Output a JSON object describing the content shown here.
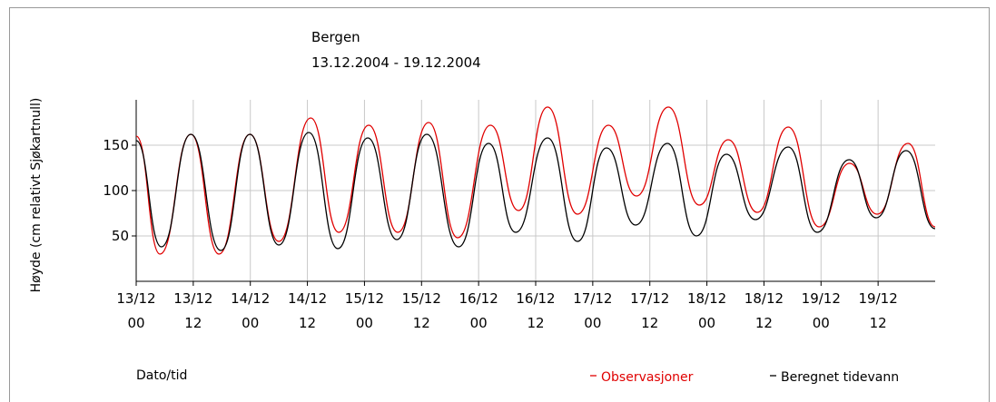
{
  "chart_data": {
    "type": "line",
    "title": "Bergen",
    "subtitle": "13.12.2004 - 19.12.2004",
    "ylabel": "Høyde (cm relativt Sjøkartnull)",
    "xlabel": "Dato/tid",
    "xlim": [
      0,
      168
    ],
    "xticks": [
      {
        "value": 0,
        "label": "13/12"
      },
      {
        "value": 12,
        "label": "13/12"
      },
      {
        "value": 24,
        "label": "14/12"
      },
      {
        "value": 36,
        "label": "14/12"
      },
      {
        "value": 48,
        "label": "15/12"
      },
      {
        "value": 60,
        "label": "15/12"
      },
      {
        "value": 72,
        "label": "16/12"
      },
      {
        "value": 84,
        "label": "16/12"
      },
      {
        "value": 96,
        "label": "17/12"
      },
      {
        "value": 108,
        "label": "17/12"
      },
      {
        "value": 120,
        "label": "18/12"
      },
      {
        "value": 132,
        "label": "18/12"
      },
      {
        "value": 144,
        "label": "19/12"
      },
      {
        "value": 156,
        "label": "19/12"
      }
    ],
    "xtick_hours": [
      "00",
      "12",
      "00",
      "12",
      "00",
      "12",
      "00",
      "12",
      "00",
      "12",
      "00",
      "12",
      "00",
      "12"
    ],
    "ylim": [
      0,
      200
    ],
    "yticks": [
      50,
      100,
      150
    ],
    "grid": true,
    "series": [
      {
        "name": "Observasjoner",
        "color": "#e00000",
        "x": [
          0,
          5.0,
          11.5,
          17.4,
          23.9,
          30.0,
          36.7,
          42.6,
          48.9,
          55.0,
          61.5,
          67.6,
          74.5,
          80.4,
          86.5,
          92.8,
          99.3,
          105.2,
          111.9,
          118.4,
          124.5,
          130.6,
          137.1,
          143.6,
          150.0,
          155.8,
          162.3,
          168
        ],
        "values": [
          160,
          30,
          162,
          30,
          162,
          44,
          180,
          54,
          172,
          54,
          175,
          48,
          172,
          78,
          192,
          74,
          172,
          94,
          192,
          84,
          156,
          76,
          170,
          60,
          130,
          74,
          152,
          60
        ]
      },
      {
        "name": "Beregnet tidevann",
        "color": "#000000",
        "x": [
          0,
          5.3,
          11.5,
          17.8,
          23.9,
          30.0,
          36.3,
          42.4,
          48.7,
          54.8,
          61.1,
          67.8,
          74.1,
          79.8,
          86.5,
          92.8,
          98.9,
          105.0,
          111.7,
          117.8,
          124.1,
          130.2,
          137.1,
          143.2,
          149.9,
          155.6,
          161.9,
          168
        ],
        "values": [
          155,
          38,
          162,
          34,
          162,
          40,
          164,
          36,
          158,
          46,
          162,
          38,
          152,
          54,
          158,
          44,
          147,
          62,
          152,
          50,
          140,
          68,
          148,
          54,
          134,
          70,
          144,
          58
        ]
      }
    ]
  }
}
